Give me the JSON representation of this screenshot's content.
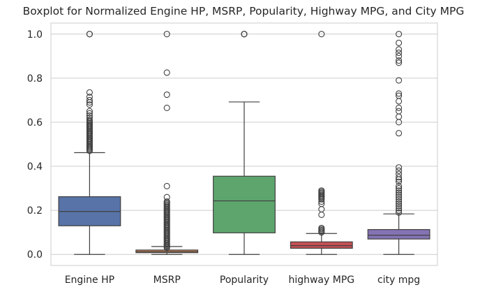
{
  "chart_data": {
    "type": "boxplot",
    "title": "Boxplot for Normalized Engine HP, MSRP, Popularity, Highway MPG, and City MPG",
    "xlabel": "",
    "ylabel": "",
    "ylim": [
      -0.05,
      1.05
    ],
    "yticks": [
      "0.0",
      "0.2",
      "0.4",
      "0.6",
      "0.8",
      "1.0"
    ],
    "ytick_values": [
      0.0,
      0.2,
      0.4,
      0.6,
      0.8,
      1.0
    ],
    "grid": "horizontal",
    "categories": [
      "Engine HP",
      "MSRP",
      "Popularity",
      "highway MPG",
      "city mpg"
    ],
    "series": [
      {
        "name": "Engine HP",
        "color": "#5873a7",
        "whisker_low": 0.0,
        "q1": 0.13,
        "median": 0.195,
        "q3": 0.262,
        "whisker_high": 0.462,
        "outliers": [
          0.47,
          0.475,
          0.48,
          0.485,
          0.49,
          0.495,
          0.5,
          0.505,
          0.51,
          0.515,
          0.52,
          0.525,
          0.53,
          0.535,
          0.54,
          0.545,
          0.55,
          0.555,
          0.56,
          0.565,
          0.57,
          0.575,
          0.58,
          0.585,
          0.59,
          0.595,
          0.6,
          0.605,
          0.61,
          0.62,
          0.63,
          0.64,
          0.65,
          0.68,
          0.69,
          0.7,
          0.715,
          0.735,
          1.0,
          1.0
        ]
      },
      {
        "name": "MSRP",
        "color": "#d98a5c",
        "whisker_low": 0.0,
        "q1": 0.008,
        "median": 0.013,
        "q3": 0.02,
        "whisker_high": 0.036,
        "outliers": [
          0.03,
          0.035,
          0.04,
          0.045,
          0.05,
          0.055,
          0.06,
          0.065,
          0.07,
          0.075,
          0.08,
          0.085,
          0.09,
          0.095,
          0.1,
          0.105,
          0.11,
          0.115,
          0.12,
          0.125,
          0.13,
          0.135,
          0.14,
          0.145,
          0.15,
          0.155,
          0.16,
          0.165,
          0.17,
          0.175,
          0.18,
          0.185,
          0.19,
          0.195,
          0.2,
          0.205,
          0.21,
          0.215,
          0.22,
          0.225,
          0.23,
          0.235,
          0.24,
          0.26,
          0.31,
          0.665,
          0.725,
          0.825,
          1.0
        ]
      },
      {
        "name": "Popularity",
        "color": "#5da56c",
        "whisker_low": 0.0,
        "q1": 0.098,
        "median": 0.243,
        "q3": 0.355,
        "whisker_high": 0.692,
        "outliers": [
          1.0,
          1.0,
          1.0
        ]
      },
      {
        "name": "highway MPG",
        "color": "#c55055",
        "whisker_low": 0.0,
        "q1": 0.028,
        "median": 0.04,
        "q3": 0.057,
        "whisker_high": 0.095,
        "outliers": [
          0.1,
          0.105,
          0.11,
          0.115,
          0.12,
          0.18,
          0.205,
          0.23,
          0.24,
          0.25,
          0.255,
          0.26,
          0.265,
          0.27,
          0.275,
          0.28,
          0.285,
          0.29,
          1.0
        ]
      },
      {
        "name": "city mpg",
        "color": "#8473b3",
        "whisker_low": 0.0,
        "q1": 0.07,
        "median": 0.087,
        "q3": 0.113,
        "whisker_high": 0.184,
        "outliers": [
          0.19,
          0.2,
          0.21,
          0.22,
          0.23,
          0.24,
          0.25,
          0.26,
          0.27,
          0.28,
          0.29,
          0.3,
          0.31,
          0.33,
          0.34,
          0.35,
          0.365,
          0.38,
          0.395,
          0.55,
          0.6,
          0.625,
          0.65,
          0.665,
          0.695,
          0.72,
          0.73,
          0.79,
          0.87,
          0.88,
          0.9,
          0.915,
          0.93,
          0.96,
          1.0
        ]
      }
    ]
  }
}
